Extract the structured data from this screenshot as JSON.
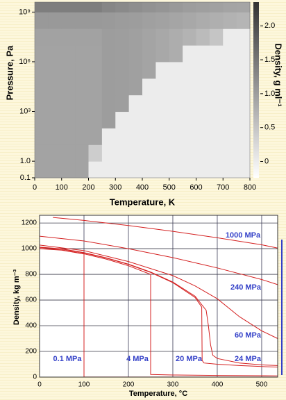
{
  "chart_data": [
    {
      "type": "heatmap",
      "xlabel": "Temperature, K",
      "ylabel": "Pressure, Pa",
      "colorbar_label": "Density, g ml⁻¹",
      "xlim": [
        0,
        800
      ],
      "xticks": [
        0,
        100,
        200,
        300,
        400,
        500,
        600,
        700,
        800
      ],
      "ylim": [
        0.1,
        4000000000
      ],
      "yscale": "log",
      "yticks": [
        0.1,
        {
          "value": 1,
          "label": "1.0"
        },
        {
          "value": 1000,
          "label": "10³"
        },
        {
          "value": 1000000,
          "label": "10⁶"
        },
        {
          "value": 1000000000,
          "label": "10⁹"
        }
      ],
      "zlim": [
        -0.24,
        2.35
      ],
      "zticks": [
        0,
        0.5,
        {
          "value": 1,
          "label": "1.0"
        },
        1.5,
        {
          "value": 2,
          "label": "2.0"
        }
      ],
      "colormap": [
        "#ffffff",
        "#333333"
      ],
      "xbins": [
        0,
        50,
        100,
        150,
        200,
        250,
        300,
        350,
        400,
        450,
        500,
        550,
        600,
        650,
        700,
        750,
        800
      ],
      "ybins": [
        0.1,
        1,
        10,
        100,
        1000,
        10000,
        100000,
        1000000,
        10000000,
        100000000,
        1000000000,
        4000000000
      ],
      "z": [
        [
          0.93,
          0.93,
          0.93,
          0.93,
          0,
          0,
          0,
          0,
          0,
          0,
          0,
          0,
          0,
          0,
          0,
          0
        ],
        [
          0.93,
          0.93,
          0.93,
          0.93,
          0.4,
          0,
          0,
          0,
          0,
          0,
          0,
          0,
          0,
          0,
          0,
          0
        ],
        [
          0.93,
          0.93,
          0.93,
          0.93,
          0.93,
          0,
          0,
          0,
          0,
          0,
          0,
          0,
          0,
          0,
          0,
          0
        ],
        [
          0.93,
          0.93,
          0.93,
          0.93,
          0.93,
          1.0,
          0,
          0,
          0,
          0,
          0,
          0,
          0,
          0,
          0,
          0
        ],
        [
          0.93,
          0.93,
          0.93,
          0.93,
          0.93,
          1.0,
          0.99,
          0,
          0,
          0,
          0,
          0,
          0,
          0,
          0,
          0
        ],
        [
          0.93,
          0.93,
          0.93,
          0.93,
          0.93,
          1.0,
          0.99,
          0.96,
          0,
          0,
          0,
          0,
          0,
          0,
          0,
          0
        ],
        [
          0.93,
          0.93,
          0.93,
          0.93,
          0.93,
          1.0,
          0.99,
          0.96,
          0.92,
          0,
          0,
          0,
          0,
          0,
          0,
          0
        ],
        [
          0.93,
          0.93,
          0.93,
          0.93,
          0.93,
          1.0,
          0.99,
          0.96,
          0.92,
          0.87,
          0.8,
          0,
          0,
          0,
          0,
          0
        ],
        [
          0.94,
          0.94,
          0.94,
          0.94,
          0.94,
          1.0,
          0.99,
          0.96,
          0.92,
          0.87,
          0.8,
          0.72,
          0.62,
          0.5,
          0,
          0
        ],
        [
          1.05,
          1.05,
          1.05,
          1.05,
          1.05,
          1.04,
          1.02,
          1.0,
          0.97,
          0.94,
          0.9,
          0.86,
          0.82,
          0.78,
          0.74,
          0.7
        ],
        [
          1.4,
          1.4,
          1.4,
          1.4,
          1.4,
          1.3,
          1.25,
          1.2,
          1.15,
          1.1,
          1.05,
          1.0,
          0.98,
          0.95,
          0.92,
          0.9
        ]
      ]
    },
    {
      "type": "line",
      "xlabel": "Temperature, °C",
      "ylabel": "Density, kg m⁻³",
      "xlim": [
        0,
        536
      ],
      "xticks": [
        0,
        100,
        200,
        300,
        400,
        500
      ],
      "ylim": [
        0,
        1260
      ],
      "yticks": [
        0,
        200,
        400,
        600,
        800,
        1000,
        1200
      ],
      "grid": true,
      "series": [
        {
          "name": "0.1 MPa",
          "color": "#d42020",
          "x": [
            0,
            50,
            100,
            100,
            200,
            300,
            400,
            500,
            536
          ],
          "values": [
            1000,
            988,
            958,
            0.6,
            0.46,
            0.38,
            0.33,
            0.28,
            0.27
          ]
        },
        {
          "name": "4 MPa",
          "color": "#d42020",
          "x": [
            0,
            50,
            100,
            150,
            200,
            250,
            250,
            300,
            400,
            500,
            536
          ],
          "values": [
            1002,
            990,
            960,
            919,
            867,
            800,
            20,
            16,
            13,
            11,
            10
          ]
        },
        {
          "name": "20 MPa",
          "color": "#d42020",
          "x": [
            0,
            50,
            100,
            150,
            200,
            250,
            300,
            350,
            365,
            366,
            370,
            400,
            450,
            500,
            536
          ],
          "values": [
            1010,
            997,
            967,
            927,
            877,
            815,
            735,
            620,
            545,
            130,
            110,
            100,
            90,
            82,
            78
          ]
        },
        {
          "name": "24 MPa",
          "color": "#d42020",
          "x": [
            0,
            50,
            100,
            150,
            200,
            250,
            300,
            350,
            375,
            380,
            385,
            390,
            400,
            450,
            500,
            536
          ],
          "values": [
            1012,
            999,
            969,
            929,
            880,
            818,
            740,
            630,
            520,
            400,
            250,
            170,
            145,
            110,
            95,
            90
          ]
        },
        {
          "name": "60 MPa",
          "color": "#d42020",
          "x": [
            0,
            100,
            200,
            300,
            350,
            400,
            450,
            500,
            536
          ],
          "values": [
            1028,
            985,
            900,
            790,
            710,
            610,
            470,
            360,
            300
          ]
        },
        {
          "name": "240 MPa",
          "color": "#d42020",
          "x": [
            0,
            100,
            200,
            300,
            400,
            500,
            536
          ],
          "values": [
            1097,
            1060,
            1000,
            930,
            850,
            760,
            720
          ]
        },
        {
          "name": "1000 MPa",
          "color": "#d42020",
          "x": [
            30,
            100,
            200,
            300,
            400,
            500,
            536
          ],
          "values": [
            1243,
            1220,
            1180,
            1135,
            1085,
            1030,
            1005
          ]
        }
      ]
    }
  ]
}
